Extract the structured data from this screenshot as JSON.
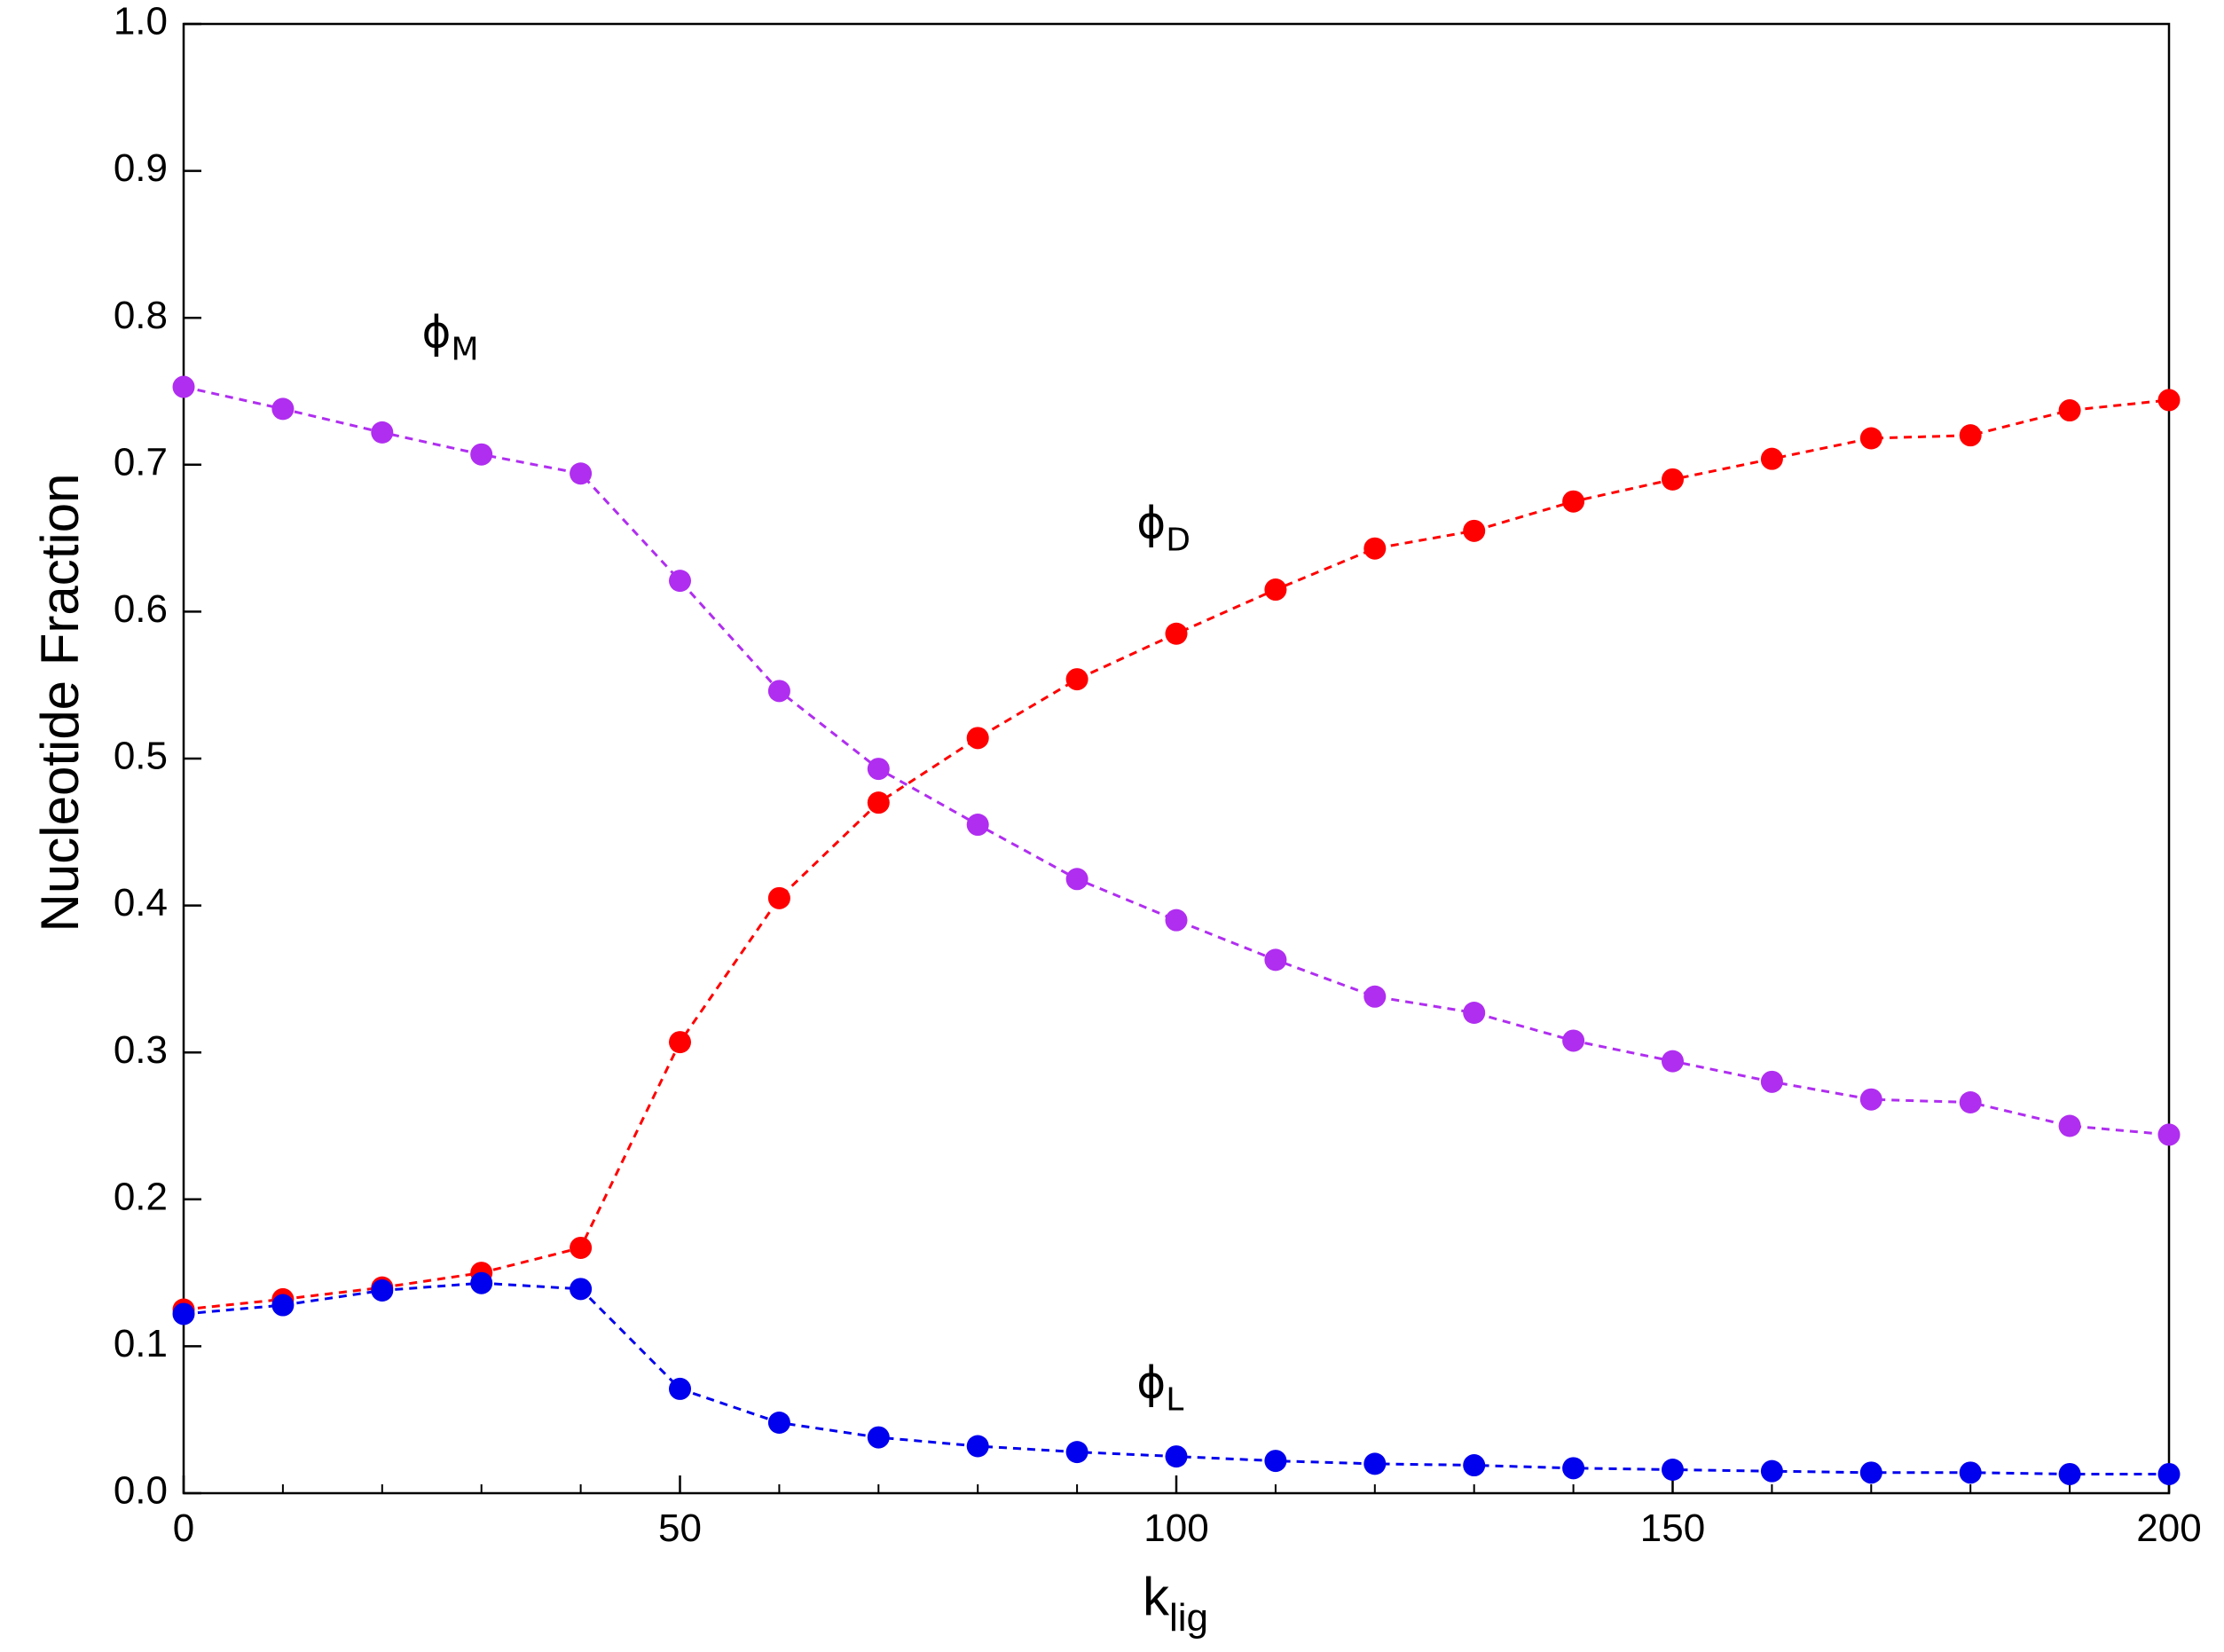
{
  "chart_data": {
    "type": "line",
    "title": "",
    "xlabel": "k",
    "xlabel_sub": "lig",
    "ylabel": "Nucleotide Fraction",
    "xlim": [
      0,
      200
    ],
    "ylim": [
      0,
      1.0
    ],
    "x_ticks": [
      0,
      50,
      100,
      150,
      200
    ],
    "x_tick_labels": [
      "0",
      "50",
      "100",
      "150",
      "200"
    ],
    "x_minor_step": 10,
    "y_ticks": [
      0,
      0.1,
      0.2,
      0.3,
      0.4,
      0.5,
      0.6,
      0.7,
      0.8,
      0.9,
      1.0
    ],
    "y_tick_labels": [
      "0.0",
      "0.1",
      "0.2",
      "0.3",
      "0.4",
      "0.5",
      "0.6",
      "0.7",
      "0.8",
      "0.9",
      "1.0"
    ],
    "grid": false,
    "legend": "none",
    "x": [
      0,
      10,
      20,
      30,
      40,
      50,
      60,
      70,
      80,
      90,
      100,
      110,
      120,
      130,
      140,
      150,
      160,
      170,
      180,
      190,
      200
    ],
    "series": [
      {
        "id": "phi-m",
        "label_main": "ϕ",
        "label_sub": "M",
        "label_at": [
          24,
          0.78
        ],
        "color": "#b02ef0",
        "values": [
          0.753,
          0.738,
          0.722,
          0.707,
          0.694,
          0.621,
          0.546,
          0.493,
          0.455,
          0.418,
          0.39,
          0.363,
          0.338,
          0.327,
          0.308,
          0.294,
          0.28,
          0.268,
          0.266,
          0.25,
          0.244
        ]
      },
      {
        "id": "phi-d",
        "label_main": "ϕ",
        "label_sub": "D",
        "label_at": [
          96,
          0.65
        ],
        "color": "#ff0000",
        "values": [
          0.125,
          0.132,
          0.14,
          0.15,
          0.167,
          0.307,
          0.405,
          0.47,
          0.514,
          0.554,
          0.585,
          0.615,
          0.643,
          0.655,
          0.675,
          0.69,
          0.704,
          0.718,
          0.72,
          0.737,
          0.744
        ]
      },
      {
        "id": "phi-l",
        "label_main": "ϕ",
        "label_sub": "L",
        "label_at": [
          96,
          0.065
        ],
        "color": "#0000ee",
        "values": [
          0.122,
          0.128,
          0.138,
          0.143,
          0.139,
          0.071,
          0.048,
          0.038,
          0.032,
          0.028,
          0.025,
          0.022,
          0.02,
          0.019,
          0.017,
          0.016,
          0.015,
          0.014,
          0.014,
          0.013,
          0.013
        ]
      }
    ]
  }
}
